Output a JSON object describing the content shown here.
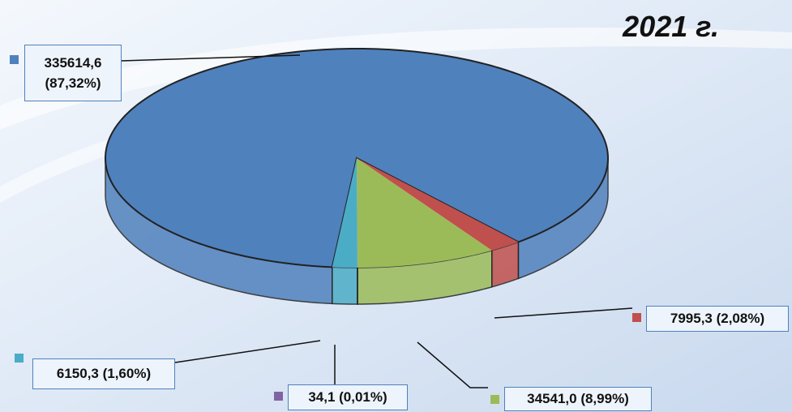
{
  "chart_data": {
    "type": "pie",
    "title": "2021 г.",
    "values": [
      335614.6,
      7995.3,
      34541.0,
      34.1,
      6150.3
    ],
    "value_labels": [
      "335614,6 (87,32%)",
      "7995,3 (2,08%)",
      "34541,0 (8,99%)",
      "34,1 (0,01%)",
      "6150,3 (1,60%)"
    ],
    "colors": [
      "#4f81bd",
      "#c0504d",
      "#9bbb59",
      "#8064a2",
      "#4bacc6"
    ]
  }
}
